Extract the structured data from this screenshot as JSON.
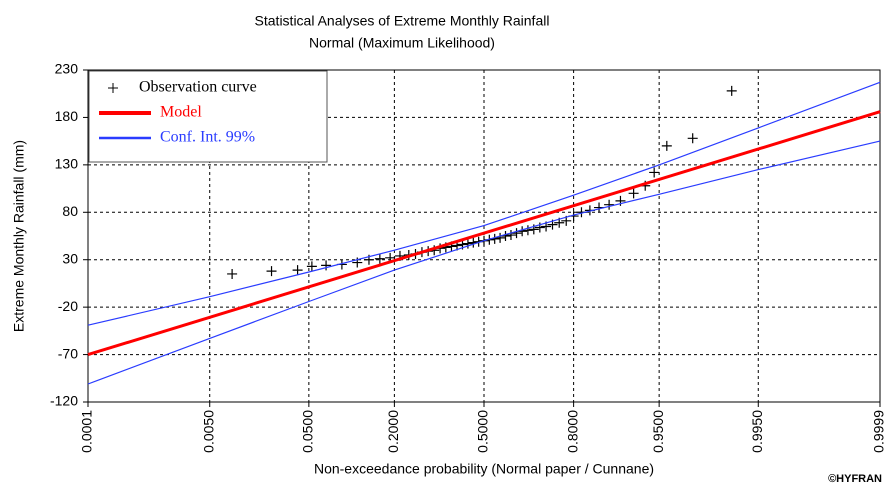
{
  "chart_data": {
    "type": "probability-plot",
    "title": "Statistical Analyses of Extreme Monthly Rainfall",
    "subtitle": "Normal (Maximum Likelihood)",
    "x_label": "Non-exceedance probability (Normal paper / Cunnane)",
    "y_label": "Extreme Monthly Rainfall (mm)",
    "credit": "©HYFRAN",
    "xscale": "normal",
    "xlim": [
      0.0001,
      0.9999
    ],
    "xticks": [
      {
        "value": 0.0001,
        "label": "0.0001"
      },
      {
        "value": 0.005,
        "label": "0.0050"
      },
      {
        "value": 0.05,
        "label": "0.0500"
      },
      {
        "value": 0.2,
        "label": "0.2000"
      },
      {
        "value": 0.5,
        "label": "0.5000"
      },
      {
        "value": 0.8,
        "label": "0.8000"
      },
      {
        "value": 0.95,
        "label": "0.9500"
      },
      {
        "value": 0.995,
        "label": "0.9950"
      },
      {
        "value": 0.9999,
        "label": "0.9999"
      }
    ],
    "ylim": [
      -120,
      230
    ],
    "yticks": [
      230,
      180,
      130,
      80,
      30,
      -20,
      -70,
      -120
    ],
    "grid": true,
    "legend": "top-left",
    "series": [
      {
        "name": "Observation curve",
        "marker": "+",
        "color": "#000000",
        "x": [
          0.009,
          0.023,
          0.04,
          0.053,
          0.069,
          0.091,
          0.117,
          0.14,
          0.164,
          0.189,
          0.215,
          0.24,
          0.26,
          0.28,
          0.3,
          0.32,
          0.34,
          0.36,
          0.38,
          0.4,
          0.42,
          0.44,
          0.46,
          0.48,
          0.5,
          0.52,
          0.54,
          0.56,
          0.58,
          0.6,
          0.62,
          0.64,
          0.66,
          0.68,
          0.7,
          0.72,
          0.74,
          0.76,
          0.78,
          0.8,
          0.82,
          0.84,
          0.86,
          0.88,
          0.9,
          0.92,
          0.935,
          0.945,
          0.957,
          0.975,
          0.99
        ],
        "values": [
          15,
          18,
          19,
          23,
          24,
          25,
          27,
          30,
          31,
          32,
          34,
          35,
          36,
          38,
          39,
          40,
          42,
          43,
          44,
          45,
          46,
          47,
          48,
          49,
          50,
          51,
          52,
          53,
          55,
          56,
          58,
          60,
          61,
          62,
          64,
          65,
          67,
          69,
          71,
          76,
          80,
          82,
          85,
          88,
          92,
          100,
          108,
          122,
          150,
          158,
          208
        ]
      },
      {
        "name": "Model",
        "color": "#ff0000",
        "x": [
          0.0001,
          0.9999
        ],
        "values": [
          -70,
          186
        ]
      },
      {
        "name": "Conf. Int. 99%",
        "color": "#2a3cff",
        "x": [
          0.0001,
          0.005,
          0.05,
          0.2,
          0.5,
          0.8,
          0.95,
          0.995,
          0.9999
        ],
        "values": [
          -39,
          -9,
          17,
          40,
          66,
          98,
          130,
          169,
          217
        ],
        "lower": [
          -101,
          -53,
          -14,
          19,
          50,
          77,
          99,
          125,
          155
        ]
      }
    ]
  }
}
